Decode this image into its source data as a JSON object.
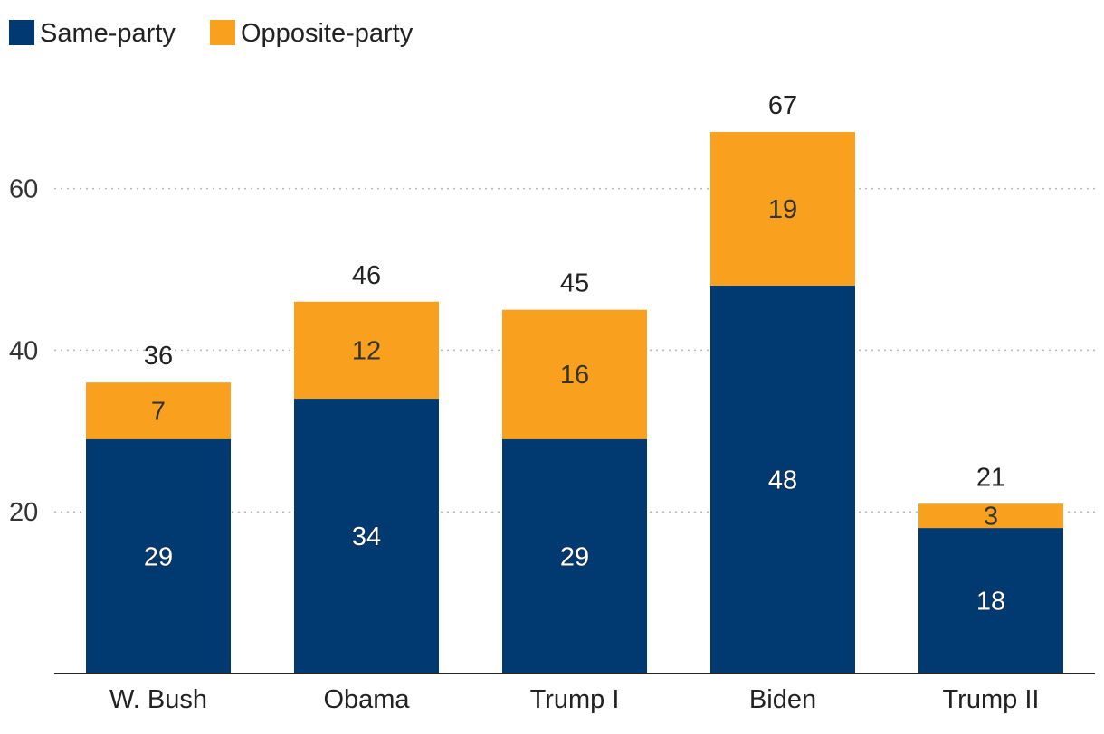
{
  "chart_data": {
    "type": "bar",
    "stacked": true,
    "title": "",
    "xlabel": "",
    "ylabel": "",
    "categories": [
      "W. Bush",
      "Obama",
      "Trump I",
      "Biden",
      "Trump II"
    ],
    "series": [
      {
        "name": "Same-party",
        "values": [
          29,
          34,
          29,
          48,
          18
        ],
        "color": "#003a70"
      },
      {
        "name": "Opposite-party",
        "values": [
          7,
          12,
          16,
          19,
          3
        ],
        "color": "#f9a11e"
      }
    ],
    "totals": [
      36,
      46,
      45,
      67,
      21
    ],
    "ylim": [
      0,
      70
    ],
    "yticks": [
      20,
      40,
      60
    ],
    "grid": true,
    "legend_position": "top-left"
  }
}
